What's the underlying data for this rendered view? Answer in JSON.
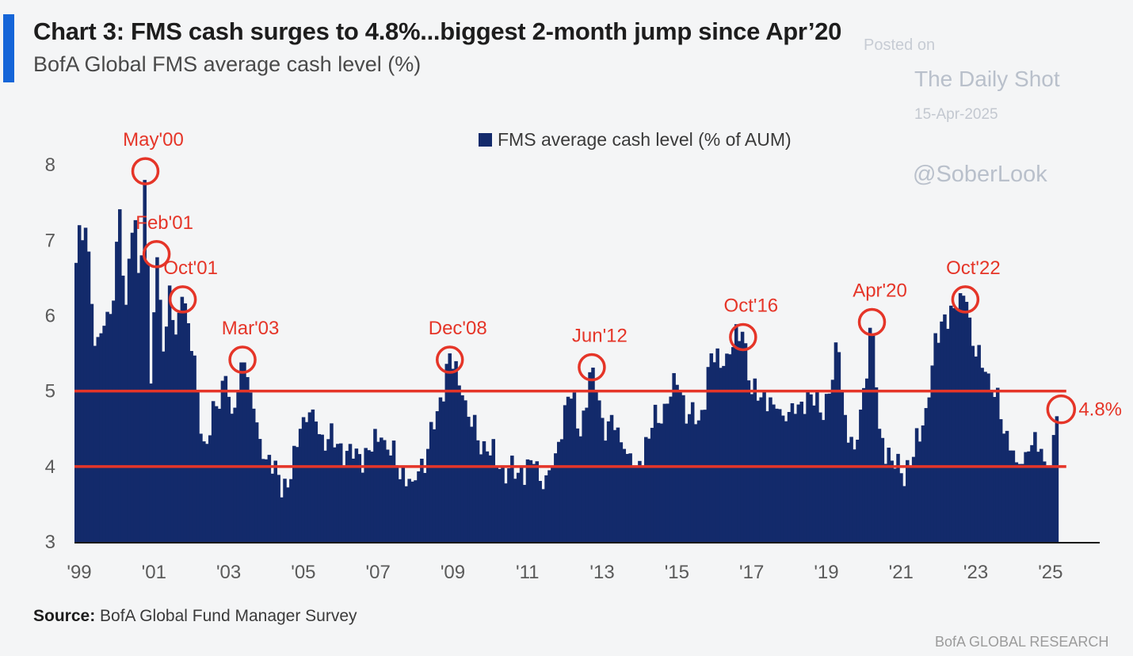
{
  "header": {
    "title": "Chart 3: FMS cash surges to 4.8%...biggest 2-month jump since Apr’20",
    "subtitle": "BofA Global FMS average cash level (%)"
  },
  "watermark": {
    "line1": "Posted on",
    "line2": "The Daily Shot",
    "line3": "15-Apr-2025",
    "line4": "@SoberLook"
  },
  "footer": {
    "source_label": "Source:",
    "source_text": " BofA Global Fund Manager Survey",
    "brand": "BofA GLOBAL RESEARCH"
  },
  "colors": {
    "bar": "#132a6b",
    "annotation": "#e53528",
    "accent": "#1565d8"
  },
  "chart_data": {
    "type": "bar",
    "x_ticks": [
      "'99",
      "'01",
      "'03",
      "'05",
      "'07",
      "'09",
      "'11",
      "'13",
      "'15",
      "'17",
      "'19",
      "'21",
      "'23",
      "'25"
    ],
    "y_ticks": [
      3,
      4,
      5,
      6,
      7,
      8
    ],
    "ylim": [
      3,
      8.4
    ],
    "xlim": [
      1999.0,
      2026.7
    ],
    "legend": "FMS average cash level (% of AUM)",
    "reference_lines": [
      5.0,
      4.0
    ],
    "anchors": [
      [
        1999.0,
        6.7
      ],
      [
        1999.1,
        7.3
      ],
      [
        1999.3,
        7.1
      ],
      [
        1999.5,
        5.6
      ],
      [
        1999.7,
        5.8
      ],
      [
        2000.0,
        6.2
      ],
      [
        2000.15,
        7.6
      ],
      [
        2000.3,
        5.9
      ],
      [
        2000.45,
        7.0
      ],
      [
        2000.6,
        7.3
      ],
      [
        2000.7,
        6.2
      ],
      [
        2000.85,
        8.0
      ],
      [
        2001.0,
        5.1
      ],
      [
        2001.15,
        6.9
      ],
      [
        2001.35,
        5.4
      ],
      [
        2001.5,
        6.4
      ],
      [
        2001.65,
        5.7
      ],
      [
        2001.85,
        6.3
      ],
      [
        2002.0,
        5.9
      ],
      [
        2002.25,
        5.0
      ],
      [
        2002.45,
        4.2
      ],
      [
        2002.75,
        4.8
      ],
      [
        2003.0,
        5.2
      ],
      [
        2003.2,
        4.6
      ],
      [
        2003.45,
        5.5
      ],
      [
        2003.7,
        4.9
      ],
      [
        2004.0,
        4.1
      ],
      [
        2004.4,
        3.9
      ],
      [
        2004.7,
        3.7
      ],
      [
        2005.0,
        4.5
      ],
      [
        2005.3,
        4.8
      ],
      [
        2005.6,
        4.4
      ],
      [
        2006.0,
        4.3
      ],
      [
        2006.4,
        4.1
      ],
      [
        2006.8,
        4.2
      ],
      [
        2007.2,
        4.4
      ],
      [
        2007.6,
        4.0
      ],
      [
        2008.0,
        3.8
      ],
      [
        2008.4,
        4.2
      ],
      [
        2008.7,
        4.8
      ],
      [
        2009.0,
        5.5
      ],
      [
        2009.3,
        5.0
      ],
      [
        2009.6,
        4.5
      ],
      [
        2010.0,
        4.2
      ],
      [
        2010.4,
        4.0
      ],
      [
        2010.8,
        3.9
      ],
      [
        2011.2,
        4.1
      ],
      [
        2011.5,
        3.7
      ],
      [
        2011.8,
        4.1
      ],
      [
        2012.2,
        5.0
      ],
      [
        2012.5,
        4.4
      ],
      [
        2012.8,
        5.4
      ],
      [
        2013.1,
        4.6
      ],
      [
        2013.4,
        4.5
      ],
      [
        2013.7,
        4.2
      ],
      [
        2014.0,
        4.0
      ],
      [
        2014.4,
        4.5
      ],
      [
        2014.8,
        4.8
      ],
      [
        2015.1,
        5.1
      ],
      [
        2015.4,
        4.7
      ],
      [
        2015.7,
        4.6
      ],
      [
        2016.0,
        5.5
      ],
      [
        2016.3,
        5.3
      ],
      [
        2016.6,
        5.6
      ],
      [
        2016.85,
        5.8
      ],
      [
        2017.1,
        4.9
      ],
      [
        2017.4,
        5.0
      ],
      [
        2017.7,
        4.8
      ],
      [
        2018.0,
        4.6
      ],
      [
        2018.3,
        4.8
      ],
      [
        2018.6,
        5.0
      ],
      [
        2018.9,
        4.7
      ],
      [
        2019.2,
        5.0
      ],
      [
        2019.4,
        5.6
      ],
      [
        2019.6,
        4.6
      ],
      [
        2019.85,
        4.2
      ],
      [
        2020.1,
        5.1
      ],
      [
        2020.3,
        6.0
      ],
      [
        2020.5,
        4.5
      ],
      [
        2020.8,
        4.1
      ],
      [
        2021.1,
        3.9
      ],
      [
        2021.4,
        4.1
      ],
      [
        2021.7,
        4.6
      ],
      [
        2021.9,
        5.3
      ],
      [
        2022.2,
        6.0
      ],
      [
        2022.5,
        6.1
      ],
      [
        2022.8,
        6.3
      ],
      [
        2023.0,
        5.6
      ],
      [
        2023.3,
        5.3
      ],
      [
        2023.6,
        4.9
      ],
      [
        2023.9,
        4.5
      ],
      [
        2024.2,
        4.0
      ],
      [
        2024.5,
        4.2
      ],
      [
        2024.8,
        4.3
      ],
      [
        2024.95,
        4.0
      ],
      [
        2025.1,
        4.0
      ],
      [
        2025.28,
        4.8
      ]
    ],
    "annotations": [
      {
        "label": "May'00",
        "x": 2000.85,
        "y": 8.0
      },
      {
        "label": "Feb'01",
        "x": 2001.15,
        "y": 6.9
      },
      {
        "label": "Oct'01",
        "x": 2001.85,
        "y": 6.3
      },
      {
        "label": "Mar'03",
        "x": 2003.45,
        "y": 5.5
      },
      {
        "label": "Dec'08",
        "x": 2009.0,
        "y": 5.5
      },
      {
        "label": "Jun'12",
        "x": 2012.8,
        "y": 5.4
      },
      {
        "label": "Oct'16",
        "x": 2016.85,
        "y": 5.8
      },
      {
        "label": "Apr'20",
        "x": 2020.3,
        "y": 6.0
      },
      {
        "label": "Oct'22",
        "x": 2022.8,
        "y": 6.3
      },
      {
        "label": "4.8%",
        "x": 2025.28,
        "y": 4.8
      }
    ]
  }
}
